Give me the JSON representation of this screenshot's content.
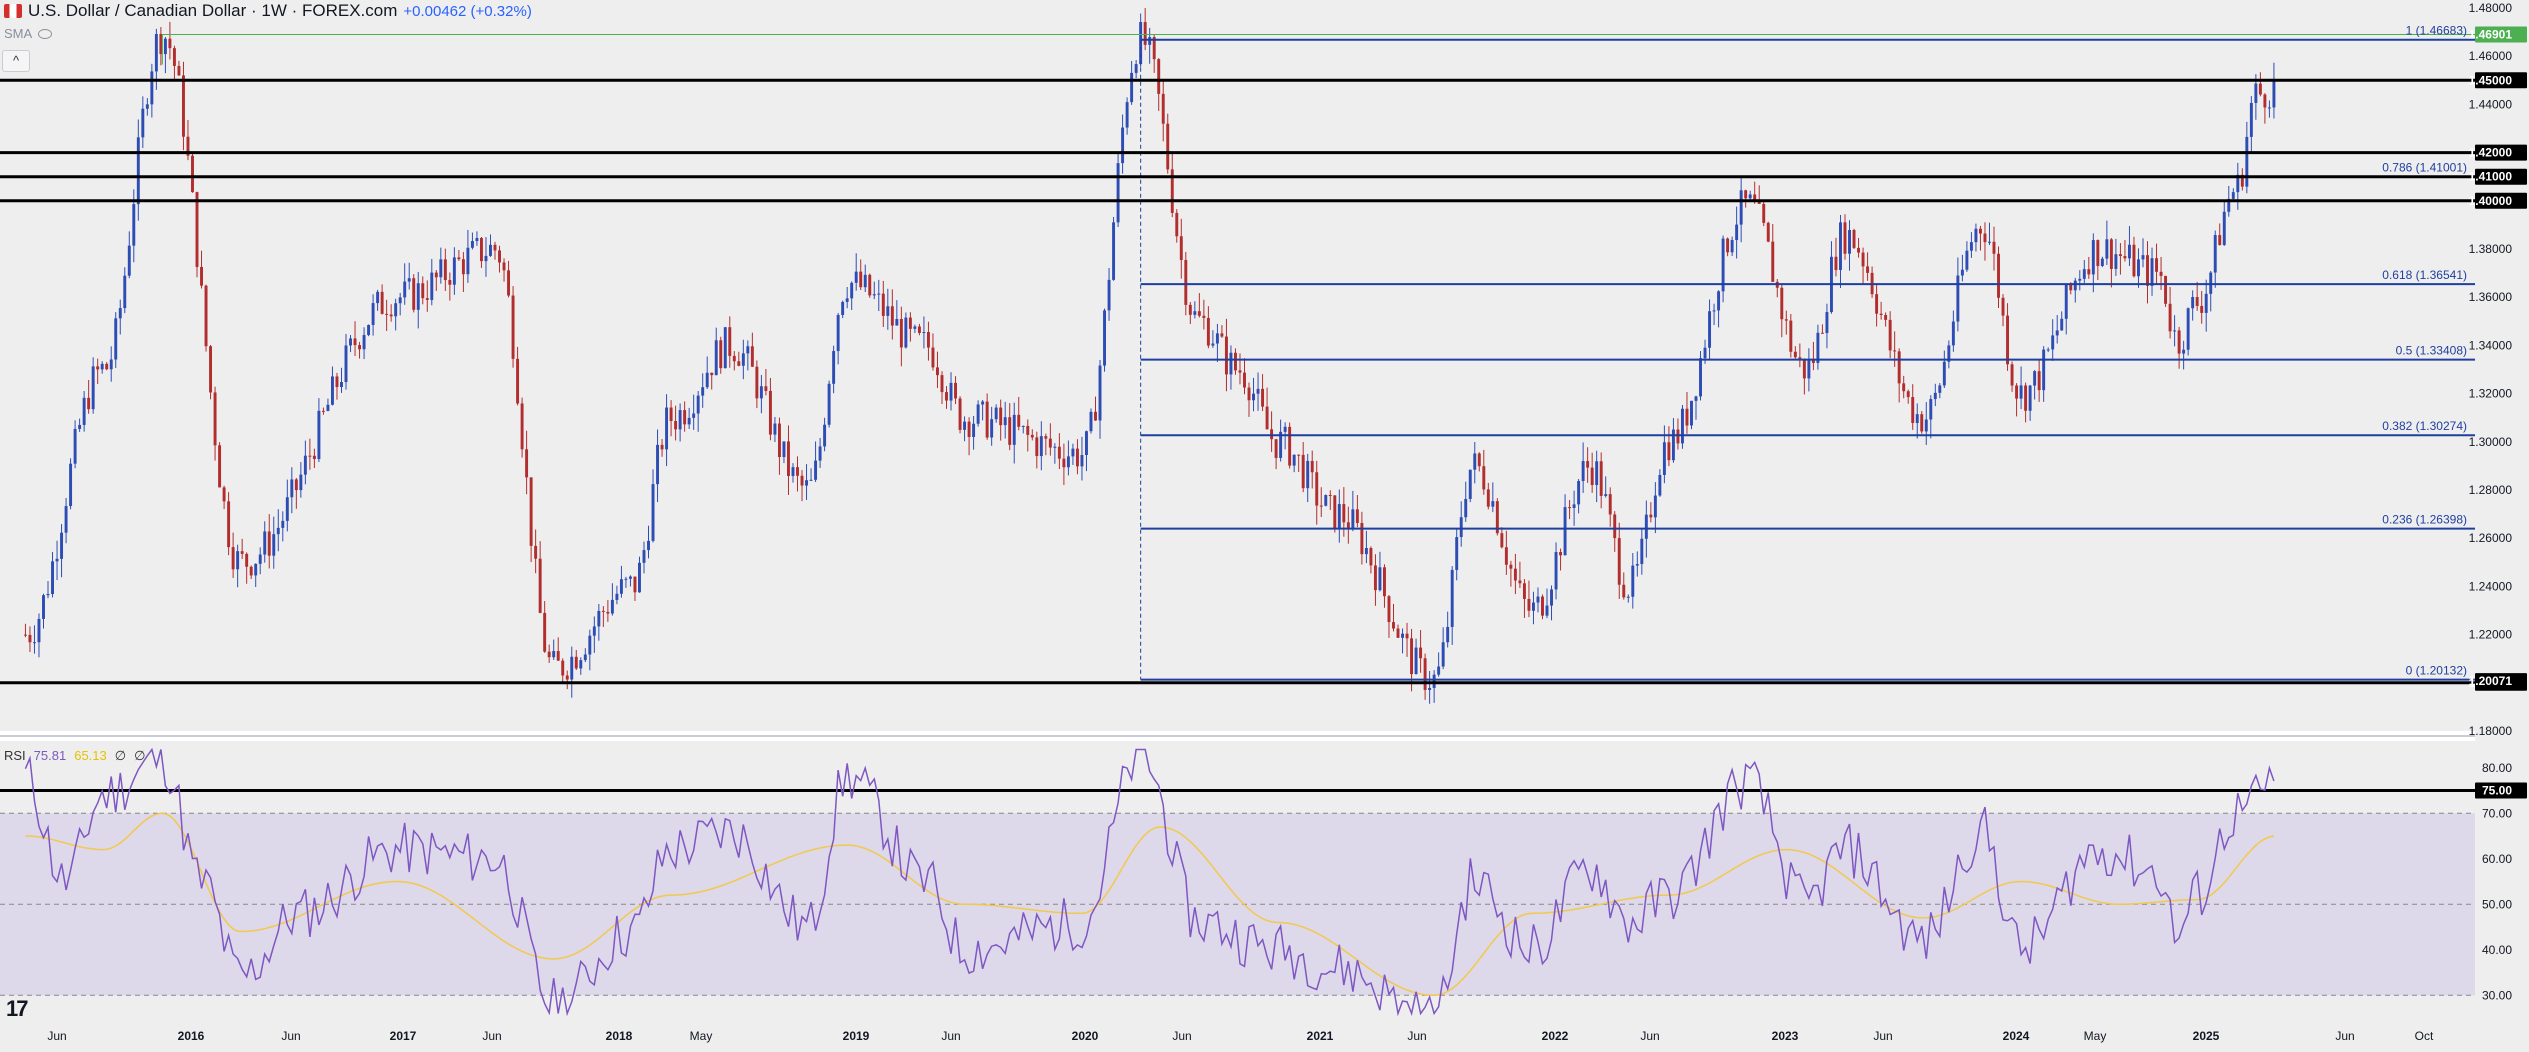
{
  "header": {
    "symbol_title": "U.S. Dollar / Canadian Dollar · 1W · FOREX.com",
    "change": "+0.00462 (+0.32%)"
  },
  "indicator_labels": {
    "sma": "SMA",
    "collapse_symbol": "^"
  },
  "rsi_legend": {
    "name": "RSI",
    "rsi_value": "75.81",
    "ma_value": "65.13",
    "extra1": "∅",
    "extra2": "∅"
  },
  "colors": {
    "background": "#eeeeee",
    "bull_candle": "#2d4db5",
    "bear_candle": "#b22d2d",
    "fib_line": "#1f3f9f",
    "horizontal_level": "#000000",
    "rsi_line": "#7e57c2",
    "rsi_ma": "#f2c94c",
    "rsi_band": "#ddd8ea",
    "top_highlight": "#4caf50"
  },
  "chart_data": {
    "type": "candlestick",
    "title": "U.S. Dollar / Canadian Dollar · 1W · FOREX.com",
    "xlabel": "",
    "ylabel": "",
    "ylim": [
      1.18,
      1.48
    ],
    "grid": false,
    "x_tick_labels": [
      "Jun",
      "2016",
      "Jun",
      "2017",
      "Jun",
      "2018",
      "May",
      "2019",
      "Jun",
      "2020",
      "Jun",
      "2021",
      "Jun",
      "2022",
      "Jun",
      "2023",
      "Jun",
      "2024",
      "May",
      "2025",
      "Jun",
      "Oct"
    ],
    "y_tick_labels": [
      "1.48000",
      "1.46000",
      "1.44000",
      "1.42000",
      "1.40000",
      "1.38000",
      "1.36000",
      "1.34000",
      "1.32000",
      "1.30000",
      "1.28000",
      "1.26000",
      "1.24000",
      "1.22000",
      "1.20000",
      "1.18000"
    ],
    "y_tick_values": [
      1.48,
      1.46,
      1.44,
      1.42,
      1.4,
      1.38,
      1.36,
      1.34,
      1.32,
      1.3,
      1.28,
      1.26,
      1.24,
      1.22,
      1.2,
      1.18
    ],
    "price_path": {
      "description_points": [
        [
          "Jun 2015",
          1.22
        ],
        [
          "Oct 2015",
          1.33
        ],
        [
          "Jan 2016",
          1.469
        ],
        [
          "May 2016",
          1.25
        ],
        [
          "Jan 2017",
          1.36
        ],
        [
          "Jun 2017",
          1.38
        ],
        [
          "Sep 2017",
          1.206
        ],
        [
          "Jan 2018",
          1.24
        ],
        [
          "Mar 2018",
          1.31
        ],
        [
          "Jun 2018",
          1.34
        ],
        [
          "Oct 2018",
          1.28
        ],
        [
          "Dec 2018",
          1.366
        ],
        [
          "Apr 2019",
          1.34
        ],
        [
          "Jun 2019",
          1.31
        ],
        [
          "Dec 2019",
          1.295
        ],
        [
          "Mar 2020",
          1.4668
        ],
        [
          "Jun 2020",
          1.35
        ],
        [
          "Aug 2020",
          1.33
        ],
        [
          "Oct 2020",
          1.3
        ],
        [
          "Jan 2021",
          1.27
        ],
        [
          "Jun 2021",
          1.2013
        ],
        [
          "Aug 2021",
          1.29
        ],
        [
          "Nov 2021",
          1.23
        ],
        [
          "Feb 2022",
          1.29
        ],
        [
          "Apr 2022",
          1.24
        ],
        [
          "Jun 2022",
          1.3
        ],
        [
          "Oct 2022",
          1.398
        ],
        [
          "Jan 2023",
          1.33
        ],
        [
          "Mar 2023",
          1.386
        ],
        [
          "Jul 2023",
          1.31
        ],
        [
          "Oct 2023",
          1.39
        ],
        [
          "Dec 2023",
          1.32
        ],
        [
          "Apr 2024",
          1.38
        ],
        [
          "Jul 2024",
          1.37
        ],
        [
          "Aug 2024",
          1.342
        ],
        [
          "Sep 2024",
          1.358
        ],
        [
          "Nov 2024",
          1.405
        ],
        [
          "Dec 2024",
          1.444
        ],
        [
          "Jan 2025",
          1.4469
        ]
      ]
    },
    "horizontal_levels": [
      {
        "label": "1.45000",
        "value": 1.45
      },
      {
        "label": "1.42000",
        "value": 1.42
      },
      {
        "label": "1.41000",
        "value": 1.41
      },
      {
        "label": "1.40000",
        "value": 1.4
      },
      {
        "label": "1.20000",
        "value": 1.2
      }
    ],
    "price_badges": [
      {
        "label": "1.46901",
        "value": 1.46901,
        "style": "green"
      },
      {
        "label": "1.20071",
        "value": 1.20071,
        "style": "dark"
      }
    ],
    "fibonacci": [
      {
        "label": "1 (1.46683)",
        "value": 1.46683
      },
      {
        "label": "0.786 (1.41001)",
        "value": 1.41001
      },
      {
        "label": "0.618 (1.36541)",
        "value": 1.36541
      },
      {
        "label": "0.5 (1.33408)",
        "value": 1.33408
      },
      {
        "label": "0.382 (1.30274)",
        "value": 1.30274
      },
      {
        "label": "0.236 (1.26398)",
        "value": 1.26398
      },
      {
        "label": "0 (1.20132)",
        "value": 1.20132
      }
    ],
    "rsi": {
      "ylim": [
        25,
        85
      ],
      "y_tick_labels": [
        "80.00",
        "70.00",
        "60.00",
        "50.00",
        "40.00",
        "30.00"
      ],
      "y_tick_values": [
        80,
        70,
        60,
        50,
        40,
        30
      ],
      "level_75_label": "75.00",
      "level_75": 75,
      "band": [
        30,
        70
      ],
      "midline": 50,
      "path_points": [
        [
          "Jun 2015",
          78
        ],
        [
          "Aug 2015",
          55
        ],
        [
          "Oct 2015",
          74
        ],
        [
          "Jan 2016",
          82
        ],
        [
          "Mar 2016",
          55
        ],
        [
          "May 2016",
          34
        ],
        [
          "Aug 2016",
          48
        ],
        [
          "Jan 2017",
          62
        ],
        [
          "Jun 2017",
          60
        ],
        [
          "Sep 2017",
          28
        ],
        [
          "Jan 2018",
          44
        ],
        [
          "Mar 2018",
          62
        ],
        [
          "Jun 2018",
          66
        ],
        [
          "Oct 2018",
          45
        ],
        [
          "Dec 2018",
          78
        ],
        [
          "Apr 2019",
          55
        ],
        [
          "Jun 2019",
          40
        ],
        [
          "Dec 2019",
          46
        ],
        [
          "Mar 2020",
          83
        ],
        [
          "Jun 2020",
          46
        ],
        [
          "Oct 2020",
          40
        ],
        [
          "Jan 2021",
          36
        ],
        [
          "Jun 2021",
          25
        ],
        [
          "Aug 2021",
          55
        ],
        [
          "Nov 2021",
          40
        ],
        [
          "Feb 2022",
          58
        ],
        [
          "Apr 2022",
          46
        ],
        [
          "Jun 2022",
          52
        ],
        [
          "Oct 2022",
          77
        ],
        [
          "Jan 2023",
          50
        ],
        [
          "Mar 2023",
          62
        ],
        [
          "Jul 2023",
          42
        ],
        [
          "Oct 2023",
          66
        ],
        [
          "Dec 2023",
          40
        ],
        [
          "Apr 2024",
          62
        ],
        [
          "Jul 2024",
          57
        ],
        [
          "Aug 2024",
          43
        ],
        [
          "Sep 2024",
          52
        ],
        [
          "Nov 2024",
          70
        ],
        [
          "Jan 2025",
          76
        ]
      ],
      "ma_points": [
        [
          "Jun 2015",
          65
        ],
        [
          "Oct 2015",
          62
        ],
        [
          "Jan 2016",
          70
        ],
        [
          "May 2016",
          44
        ],
        [
          "Jan 2017",
          55
        ],
        [
          "Sep 2017",
          38
        ],
        [
          "Mar 2018",
          52
        ],
        [
          "Dec 2018",
          63
        ],
        [
          "Jun 2019",
          50
        ],
        [
          "Dec 2019",
          48
        ],
        [
          "Apr 2020",
          67
        ],
        [
          "Oct 2020",
          46
        ],
        [
          "Jun 2021",
          30
        ],
        [
          "Nov 2021",
          48
        ],
        [
          "Jun 2022",
          52
        ],
        [
          "Dec 2022",
          62
        ],
        [
          "Jul 2023",
          47
        ],
        [
          "Dec 2023",
          55
        ],
        [
          "May 2024",
          50
        ],
        [
          "Sep 2024",
          51
        ],
        [
          "Jan 2025",
          65
        ]
      ]
    }
  }
}
